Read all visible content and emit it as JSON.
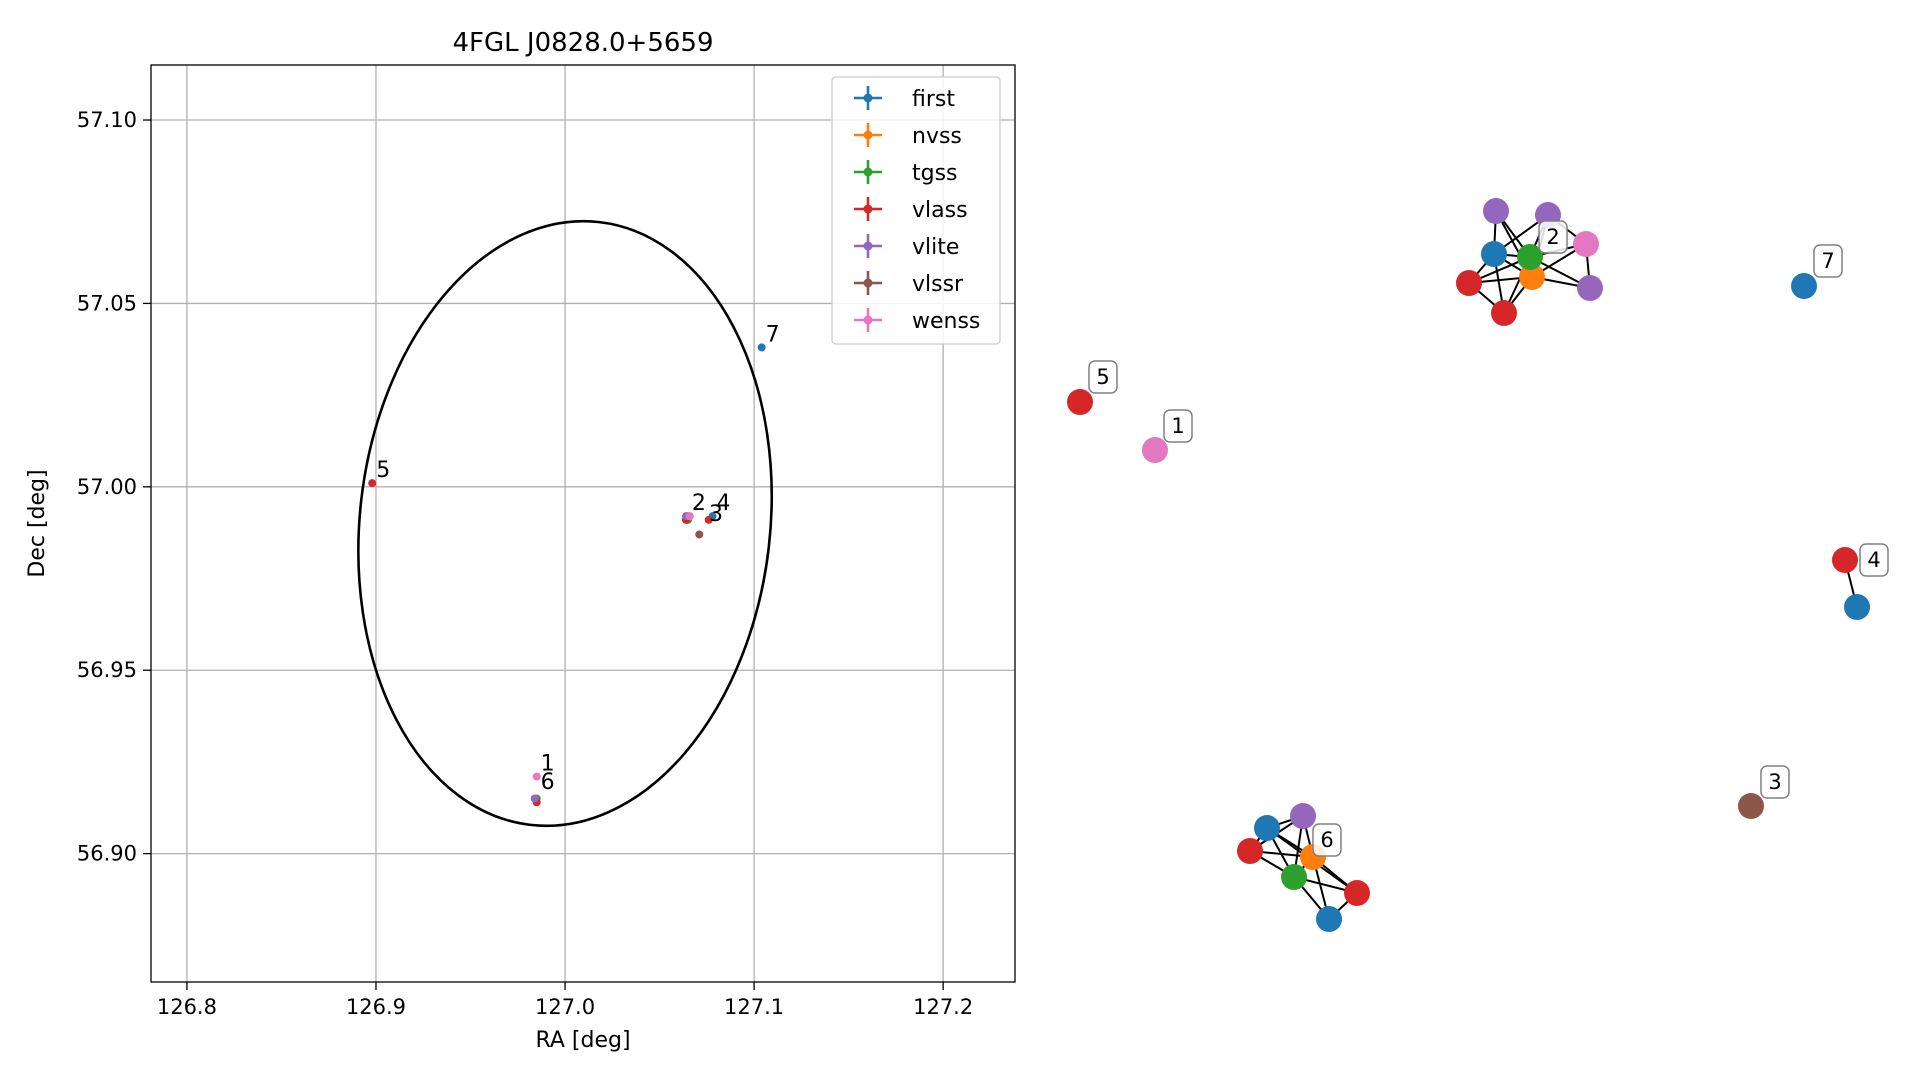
{
  "chart_data": [
    {
      "type": "scatter",
      "title": "4FGL J0828.0+5659",
      "xlabel": "RA [deg]",
      "ylabel": "Dec [deg]",
      "xlim": [
        126.781,
        127.238
      ],
      "ylim": [
        56.865,
        57.115
      ],
      "xticks": [
        126.8,
        126.9,
        127.0,
        127.1,
        127.2
      ],
      "yticks": [
        56.9,
        56.95,
        57.0,
        57.05,
        57.1
      ],
      "xtick_labels": [
        "126.8",
        "126.9",
        "127.0",
        "127.1",
        "127.2"
      ],
      "ytick_labels": [
        "56.90",
        "56.95",
        "57.00",
        "57.05",
        "57.10"
      ],
      "grid": true,
      "legend_position": "top-right",
      "ellipse": {
        "center_ra": 127.0,
        "center_dec": 56.99,
        "semi_ra": 0.1085,
        "semi_dec": 0.0827,
        "rotation_deg": 6.5
      },
      "series": [
        {
          "name": "first",
          "color": "#1f77b4",
          "points": [
            {
              "ra": 127.104,
              "dec": 57.038
            },
            {
              "ra": 127.064,
              "dec": 56.991
            },
            {
              "ra": 126.984,
              "dec": 56.915
            },
            {
              "ra": 127.078,
              "dec": 56.992
            }
          ]
        },
        {
          "name": "nvss",
          "color": "#ff7f0e",
          "points": [
            {
              "ra": 127.065,
              "dec": 56.992
            },
            {
              "ra": 126.985,
              "dec": 56.915
            }
          ]
        },
        {
          "name": "tgss",
          "color": "#2ca02c",
          "points": [
            {
              "ra": 127.065,
              "dec": 56.991
            },
            {
              "ra": 126.985,
              "dec": 56.915
            }
          ]
        },
        {
          "name": "vlass",
          "color": "#d62728",
          "points": [
            {
              "ra": 126.898,
              "dec": 57.001
            },
            {
              "ra": 127.076,
              "dec": 56.991
            },
            {
              "ra": 127.064,
              "dec": 56.991
            },
            {
              "ra": 126.985,
              "dec": 56.914
            }
          ]
        },
        {
          "name": "vlite",
          "color": "#9467bd",
          "points": [
            {
              "ra": 127.064,
              "dec": 56.992
            },
            {
              "ra": 126.984,
              "dec": 56.915
            }
          ]
        },
        {
          "name": "vlssr",
          "color": "#8c564b",
          "points": [
            {
              "ra": 127.071,
              "dec": 56.987
            }
          ]
        },
        {
          "name": "wenss",
          "color": "#e377c2",
          "points": [
            {
              "ra": 126.985,
              "dec": 56.921
            },
            {
              "ra": 127.066,
              "dec": 56.992
            }
          ]
        }
      ],
      "annotations": [
        {
          "text": "1",
          "ra": 126.985,
          "dec": 56.921
        },
        {
          "text": "2",
          "ra": 127.065,
          "dec": 56.992
        },
        {
          "text": "3",
          "ra": 127.074,
          "dec": 56.989
        },
        {
          "text": "4",
          "ra": 127.078,
          "dec": 56.992
        },
        {
          "text": "5",
          "ra": 126.898,
          "dec": 57.001
        },
        {
          "text": "6",
          "ra": 126.985,
          "dec": 56.916
        },
        {
          "text": "7",
          "ra": 127.104,
          "dec": 57.038
        }
      ]
    },
    {
      "type": "network",
      "groups": [
        {
          "label": "1",
          "nodes": [
            {
              "survey": "wenss",
              "color": "#e377c2"
            }
          ],
          "edges": []
        },
        {
          "label": "2",
          "nodes": [
            {
              "survey": "first",
              "color": "#1f77b4"
            },
            {
              "survey": "nvss",
              "color": "#ff7f0e"
            },
            {
              "survey": "tgss",
              "color": "#2ca02c"
            },
            {
              "survey": "vlass",
              "color": "#d62728"
            },
            {
              "survey": "vlass",
              "color": "#d62728"
            },
            {
              "survey": "vlite",
              "color": "#9467bd"
            },
            {
              "survey": "vlite",
              "color": "#9467bd"
            },
            {
              "survey": "vlite",
              "color": "#9467bd"
            },
            {
              "survey": "wenss",
              "color": "#e377c2"
            }
          ],
          "edges": [
            [
              0,
              1
            ],
            [
              0,
              2
            ],
            [
              0,
              3
            ],
            [
              0,
              4
            ],
            [
              0,
              5
            ],
            [
              0,
              6
            ],
            [
              1,
              2
            ],
            [
              1,
              3
            ],
            [
              1,
              4
            ],
            [
              1,
              5
            ],
            [
              1,
              6
            ],
            [
              1,
              7
            ],
            [
              1,
              8
            ],
            [
              2,
              3
            ],
            [
              2,
              4
            ],
            [
              2,
              5
            ],
            [
              2,
              6
            ],
            [
              2,
              7
            ],
            [
              2,
              8
            ],
            [
              3,
              4
            ],
            [
              6,
              8
            ],
            [
              7,
              8
            ]
          ]
        },
        {
          "label": "3",
          "nodes": [
            {
              "survey": "vlssr",
              "color": "#8c564b"
            }
          ],
          "edges": []
        },
        {
          "label": "4",
          "nodes": [
            {
              "survey": "vlass",
              "color": "#d62728"
            },
            {
              "survey": "first",
              "color": "#1f77b4"
            }
          ],
          "edges": [
            [
              0,
              1
            ]
          ]
        },
        {
          "label": "5",
          "nodes": [
            {
              "survey": "vlass",
              "color": "#d62728"
            }
          ],
          "edges": []
        },
        {
          "label": "6",
          "nodes": [
            {
              "survey": "first",
              "color": "#1f77b4"
            },
            {
              "survey": "vlite",
              "color": "#9467bd"
            },
            {
              "survey": "nvss",
              "color": "#ff7f0e"
            },
            {
              "survey": "vlass",
              "color": "#d62728"
            },
            {
              "survey": "tgss",
              "color": "#2ca02c"
            },
            {
              "survey": "vlass",
              "color": "#d62728"
            },
            {
              "survey": "first",
              "color": "#1f77b4"
            }
          ],
          "edges": [
            [
              0,
              1
            ],
            [
              0,
              2
            ],
            [
              0,
              3
            ],
            [
              0,
              4
            ],
            [
              0,
              5
            ],
            [
              1,
              2
            ],
            [
              1,
              3
            ],
            [
              1,
              4
            ],
            [
              2,
              3
            ],
            [
              2,
              4
            ],
            [
              2,
              5
            ],
            [
              2,
              6
            ],
            [
              3,
              4
            ],
            [
              4,
              5
            ],
            [
              4,
              6
            ],
            [
              5,
              6
            ]
          ]
        },
        {
          "label": "7",
          "nodes": [
            {
              "survey": "first",
              "color": "#1f77b4"
            }
          ],
          "edges": []
        }
      ]
    }
  ]
}
